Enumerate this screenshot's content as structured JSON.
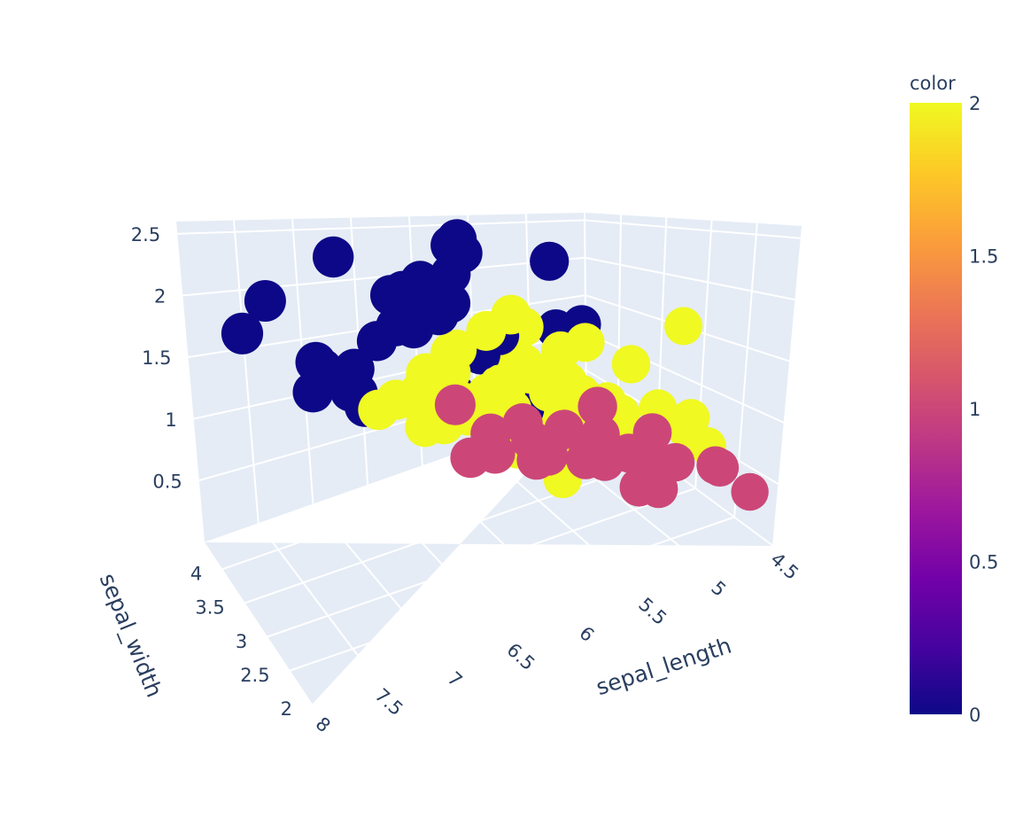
{
  "chart_data": {
    "type": "scatter3d",
    "axes": {
      "x": {
        "label": "sepal_length",
        "range": [
          4.5,
          8
        ],
        "ticks": [
          "4.5",
          "5",
          "5.5",
          "6",
          "6.5",
          "7",
          "7.5",
          "8"
        ]
      },
      "y": {
        "label": "sepal_width",
        "range": [
          2,
          4.4
        ],
        "ticks": [
          "2",
          "2.5",
          "3",
          "3.5",
          "4"
        ]
      },
      "z": {
        "label": "",
        "range": [
          0,
          2.6
        ],
        "ticks": [
          "0.5",
          "1",
          "1.5",
          "2",
          "2.5"
        ]
      }
    },
    "colorbar": {
      "title": "color",
      "range": [
        0,
        2
      ],
      "ticks": [
        "0",
        "0.5",
        "1",
        "1.5",
        "2"
      ],
      "colorscale": [
        "#0d0887",
        "#46039f",
        "#7201a8",
        "#9c179e",
        "#bd3786",
        "#d8576b",
        "#ed7953",
        "#fb9f3a",
        "#fdca26",
        "#f0f921"
      ]
    },
    "clusters": [
      {
        "color_value": 1,
        "color": "#cc4778",
        "points": [
          [
            5.1,
            3.5,
            0.2
          ],
          [
            4.9,
            3.0,
            0.2
          ],
          [
            4.7,
            3.2,
            0.2
          ],
          [
            4.6,
            3.1,
            0.2
          ],
          [
            5.0,
            3.6,
            0.2
          ],
          [
            5.4,
            3.9,
            0.4
          ],
          [
            4.6,
            3.4,
            0.3
          ],
          [
            5.0,
            3.4,
            0.2
          ],
          [
            4.4,
            2.9,
            0.2
          ],
          [
            4.9,
            3.1,
            0.1
          ],
          [
            5.4,
            3.7,
            0.2
          ],
          [
            4.8,
            3.4,
            0.2
          ],
          [
            4.8,
            3.0,
            0.1
          ],
          [
            4.3,
            3.0,
            0.1
          ],
          [
            5.8,
            4.0,
            0.2
          ],
          [
            5.7,
            4.4,
            0.4
          ],
          [
            5.1,
            3.8,
            0.3
          ],
          [
            5.7,
            3.8,
            0.3
          ],
          [
            5.1,
            3.3,
            0.5
          ],
          [
            4.5,
            2.3,
            0.3
          ],
          [
            5.0,
            3.5,
            0.6
          ],
          [
            5.2,
            4.1,
            0.1
          ],
          [
            5.5,
            4.2,
            0.2
          ],
          [
            4.8,
            3.1,
            0.2
          ],
          [
            5.3,
            3.7,
            0.2
          ]
        ]
      },
      {
        "color_value": 0,
        "color": "#0d0887",
        "points": [
          [
            6.3,
            3.3,
            2.5
          ],
          [
            5.8,
            2.7,
            1.9
          ],
          [
            7.1,
            3.0,
            2.1
          ],
          [
            6.3,
            2.9,
            1.8
          ],
          [
            6.5,
            3.0,
            2.2
          ],
          [
            7.6,
            3.0,
            2.1
          ],
          [
            7.3,
            2.9,
            1.8
          ],
          [
            6.7,
            2.5,
            1.8
          ],
          [
            7.2,
            3.6,
            2.5
          ],
          [
            6.5,
            3.2,
            2.0
          ],
          [
            6.4,
            2.7,
            1.9
          ],
          [
            6.8,
            3.0,
            2.1
          ],
          [
            5.7,
            2.5,
            2.0
          ],
          [
            5.8,
            2.8,
            2.4
          ],
          [
            6.4,
            3.2,
            2.3
          ],
          [
            7.7,
            3.8,
            2.2
          ],
          [
            7.7,
            2.6,
            2.3
          ],
          [
            6.9,
            3.2,
            2.3
          ],
          [
            7.7,
            2.8,
            2.0
          ],
          [
            6.7,
            3.3,
            2.1
          ],
          [
            7.2,
            3.2,
            1.8
          ],
          [
            7.9,
            3.8,
            2.0
          ],
          [
            6.3,
            3.4,
            2.4
          ],
          [
            6.1,
            3.0,
            1.8
          ],
          [
            6.9,
            3.1,
            2.1
          ],
          [
            6.7,
            3.1,
            2.4
          ],
          [
            6.8,
            3.2,
            2.3
          ],
          [
            6.7,
            3.0,
            2.3
          ],
          [
            6.2,
            3.4,
            2.3
          ],
          [
            7.4,
            2.8,
            1.9
          ],
          [
            6.0,
            2.2,
            1.5
          ],
          [
            6.3,
            2.5,
            1.9
          ],
          [
            7.2,
            3.0,
            1.6
          ],
          [
            6.1,
            2.6,
            1.4
          ]
        ]
      },
      {
        "color_value": 2,
        "color": "#f0f921",
        "points": [
          [
            7.0,
            3.2,
            1.4
          ],
          [
            6.4,
            3.2,
            1.5
          ],
          [
            6.9,
            3.1,
            1.5
          ],
          [
            5.5,
            2.3,
            1.3
          ],
          [
            6.5,
            2.8,
            1.5
          ],
          [
            5.7,
            2.8,
            1.3
          ],
          [
            6.3,
            3.3,
            1.6
          ],
          [
            4.9,
            2.4,
            1.0
          ],
          [
            6.6,
            2.9,
            1.3
          ],
          [
            5.2,
            2.7,
            1.4
          ],
          [
            5.0,
            2.0,
            1.0
          ],
          [
            5.9,
            3.0,
            1.5
          ],
          [
            6.0,
            2.2,
            1.0
          ],
          [
            6.1,
            2.9,
            1.4
          ],
          [
            5.6,
            2.9,
            1.3
          ],
          [
            6.7,
            3.1,
            1.4
          ],
          [
            5.6,
            3.0,
            1.5
          ],
          [
            5.8,
            2.7,
            1.0
          ],
          [
            6.2,
            2.2,
            1.5
          ],
          [
            5.6,
            2.5,
            1.1
          ],
          [
            5.9,
            3.2,
            1.8
          ],
          [
            6.1,
            2.8,
            1.3
          ],
          [
            6.3,
            2.5,
            1.5
          ],
          [
            6.1,
            2.8,
            1.2
          ],
          [
            6.4,
            2.9,
            1.3
          ],
          [
            6.6,
            3.0,
            1.4
          ],
          [
            6.8,
            2.8,
            1.4
          ],
          [
            6.7,
            3.0,
            1.7
          ],
          [
            6.0,
            2.9,
            1.5
          ],
          [
            5.7,
            2.6,
            1.0
          ],
          [
            5.5,
            2.4,
            1.1
          ],
          [
            5.5,
            2.4,
            1.0
          ],
          [
            5.8,
            2.7,
            1.2
          ],
          [
            6.0,
            2.7,
            1.6
          ],
          [
            5.4,
            3.0,
            1.5
          ],
          [
            6.0,
            3.4,
            1.6
          ],
          [
            6.7,
            3.1,
            1.5
          ],
          [
            6.3,
            2.3,
            1.3
          ],
          [
            5.6,
            3.0,
            1.3
          ],
          [
            5.5,
            2.5,
            1.3
          ],
          [
            6.1,
            3.0,
            1.4
          ],
          [
            5.8,
            2.6,
            1.2
          ],
          [
            5.0,
            2.3,
            1.0
          ],
          [
            5.6,
            2.7,
            1.3
          ],
          [
            5.7,
            3.0,
            1.2
          ],
          [
            6.2,
            2.9,
            1.3
          ],
          [
            5.1,
            2.5,
            1.1
          ],
          [
            5.7,
            2.8,
            1.3
          ],
          [
            5.9,
            3.0,
            1.8
          ],
          [
            6.3,
            2.8,
            1.5
          ],
          [
            4.9,
            2.5,
            1.7
          ],
          [
            6.0,
            3.0,
            1.8
          ],
          [
            6.2,
            2.8,
            1.8
          ],
          [
            6.5,
            3.0,
            1.8
          ]
        ]
      }
    ]
  }
}
